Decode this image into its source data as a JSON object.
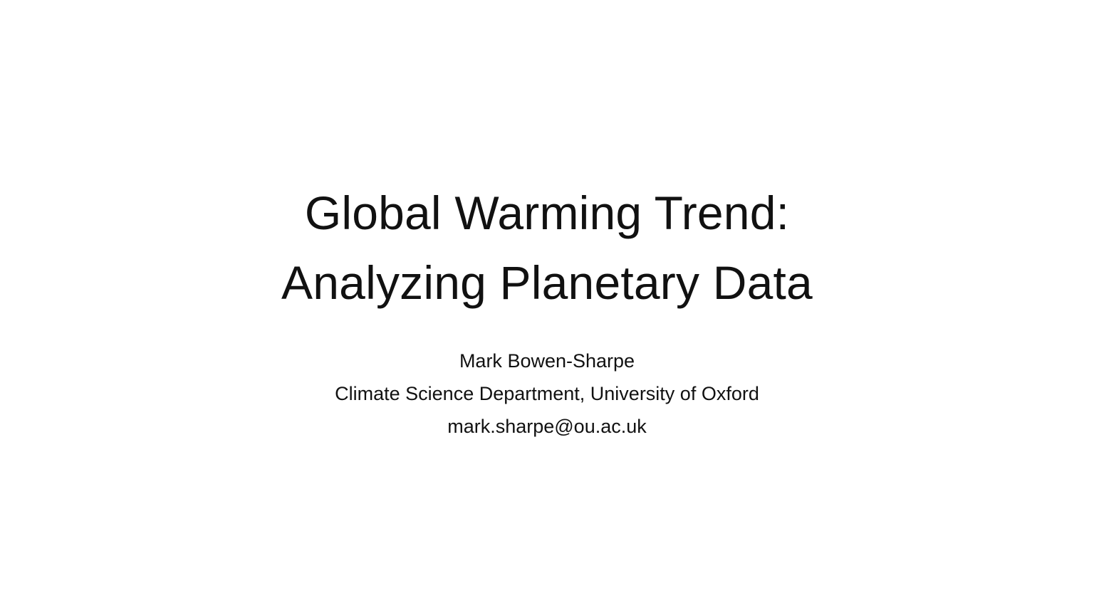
{
  "slide": {
    "title_lines": [
      "Global Warming Trend:",
      "Analyzing Planetary Data"
    ],
    "author": "Mark Bowen-Sharpe",
    "affiliation": "Climate Science Department, University of Oxford",
    "email": "mark.sharpe@ou.ac.uk",
    "text_color": "#111111",
    "background_color": "#ffffff"
  }
}
